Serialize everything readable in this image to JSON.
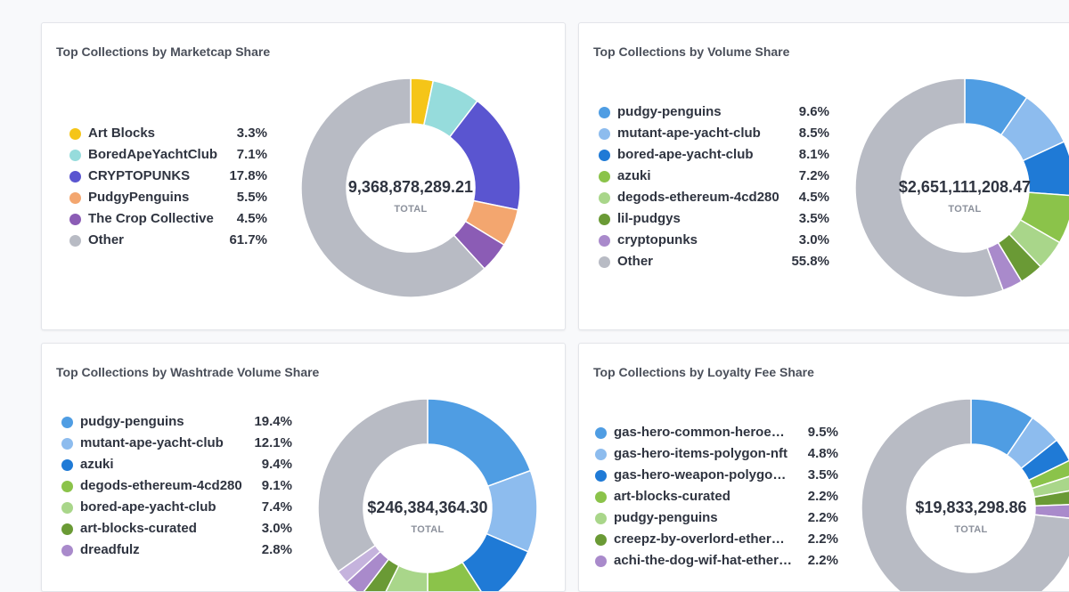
{
  "chart_data": [
    {
      "type": "pie",
      "title": "Top Collections by Marketcap Share",
      "total": "9,368,878,289.21",
      "total_label": "TOTAL",
      "slices": [
        {
          "name": "Art Blocks",
          "value": 3.3,
          "label": "3.3%",
          "color": "#f5c518"
        },
        {
          "name": "BoredApeYachtClub",
          "value": 7.1,
          "label": "7.1%",
          "color": "#96dcdc"
        },
        {
          "name": "CRYPTOPUNKS",
          "value": 17.8,
          "label": "17.8%",
          "color": "#5a55d0"
        },
        {
          "name": "PudgyPenguins",
          "value": 5.5,
          "label": "5.5%",
          "color": "#f3a66f"
        },
        {
          "name": "The Crop Collective",
          "value": 4.5,
          "label": "4.5%",
          "color": "#8b5cb5"
        },
        {
          "name": "Other",
          "value": 61.7,
          "label": "61.7%",
          "color": "#b8bbc4"
        }
      ]
    },
    {
      "type": "pie",
      "title": "Top Collections by Volume Share",
      "total": "$2,651,111,208.47",
      "total_label": "TOTAL",
      "slices": [
        {
          "name": "pudgy-penguins",
          "value": 9.6,
          "label": "9.6%",
          "color": "#4f9de3"
        },
        {
          "name": "mutant-ape-yacht-club",
          "value": 8.5,
          "label": "8.5%",
          "color": "#8dbcee"
        },
        {
          "name": "bored-ape-yacht-club",
          "value": 8.1,
          "label": "8.1%",
          "color": "#1f7ad6"
        },
        {
          "name": "azuki",
          "value": 7.2,
          "label": "7.2%",
          "color": "#8bc34a"
        },
        {
          "name": "degods-ethereum-4cd280",
          "value": 4.5,
          "label": "4.5%",
          "color": "#a9d68a"
        },
        {
          "name": "lil-pudgys",
          "value": 3.5,
          "label": "3.5%",
          "color": "#6a9a35"
        },
        {
          "name": "cryptopunks",
          "value": 3.0,
          "label": "3.0%",
          "color": "#a98acb"
        },
        {
          "name": "Other",
          "value": 55.8,
          "label": "55.8%",
          "color": "#b8bbc4"
        }
      ]
    },
    {
      "type": "pie",
      "title": "Top Collections by Washtrade Volume Share",
      "total": "$246,384,364.30",
      "total_label": "TOTAL",
      "slices": [
        {
          "name": "pudgy-penguins",
          "value": 19.4,
          "label": "19.4%",
          "color": "#4f9de3"
        },
        {
          "name": "mutant-ape-yacht-club",
          "value": 12.1,
          "label": "12.1%",
          "color": "#8dbcee"
        },
        {
          "name": "azuki",
          "value": 9.4,
          "label": "9.4%",
          "color": "#1f7ad6"
        },
        {
          "name": "degods-ethereum-4cd280",
          "value": 9.1,
          "label": "9.1%",
          "color": "#8bc34a"
        },
        {
          "name": "bored-ape-yacht-club",
          "value": 7.4,
          "label": "7.4%",
          "color": "#a9d68a"
        },
        {
          "name": "art-blocks-curated",
          "value": 3.0,
          "label": "3.0%",
          "color": "#6a9a35"
        },
        {
          "name": "dreadfulz",
          "value": 2.8,
          "label": "2.8%",
          "color": "#a98acb"
        },
        {
          "name": "",
          "value": 2.0,
          "label": "",
          "color": "#c5b3dd"
        },
        {
          "name": "",
          "value": 34.8,
          "label": "",
          "color": "#b8bbc4"
        }
      ]
    },
    {
      "type": "pie",
      "title": "Top Collections by Loyalty Fee Share",
      "total": "$19,833,298.86",
      "total_label": "TOTAL",
      "slices": [
        {
          "name": "gas-hero-common-heroes-polygon",
          "value": 9.5,
          "label": "9.5%",
          "color": "#4f9de3"
        },
        {
          "name": "gas-hero-items-polygon-nft",
          "value": 4.8,
          "label": "4.8%",
          "color": "#8dbcee"
        },
        {
          "name": "gas-hero-weapon-polygon-nft",
          "value": 3.5,
          "label": "3.5%",
          "color": "#1f7ad6"
        },
        {
          "name": "art-blocks-curated",
          "value": 2.2,
          "label": "2.2%",
          "color": "#8bc34a"
        },
        {
          "name": "pudgy-penguins",
          "value": 2.2,
          "label": "2.2%",
          "color": "#a9d68a"
        },
        {
          "name": "creepz-by-overlord-ethereum",
          "value": 2.2,
          "label": "2.2%",
          "color": "#6a9a35"
        },
        {
          "name": "achi-the-dog-wif-hat-ethereum",
          "value": 2.2,
          "label": "2.2%",
          "color": "#a98acb"
        },
        {
          "name": "",
          "value": 73.4,
          "label": "",
          "color": "#b8bbc4"
        }
      ]
    }
  ]
}
